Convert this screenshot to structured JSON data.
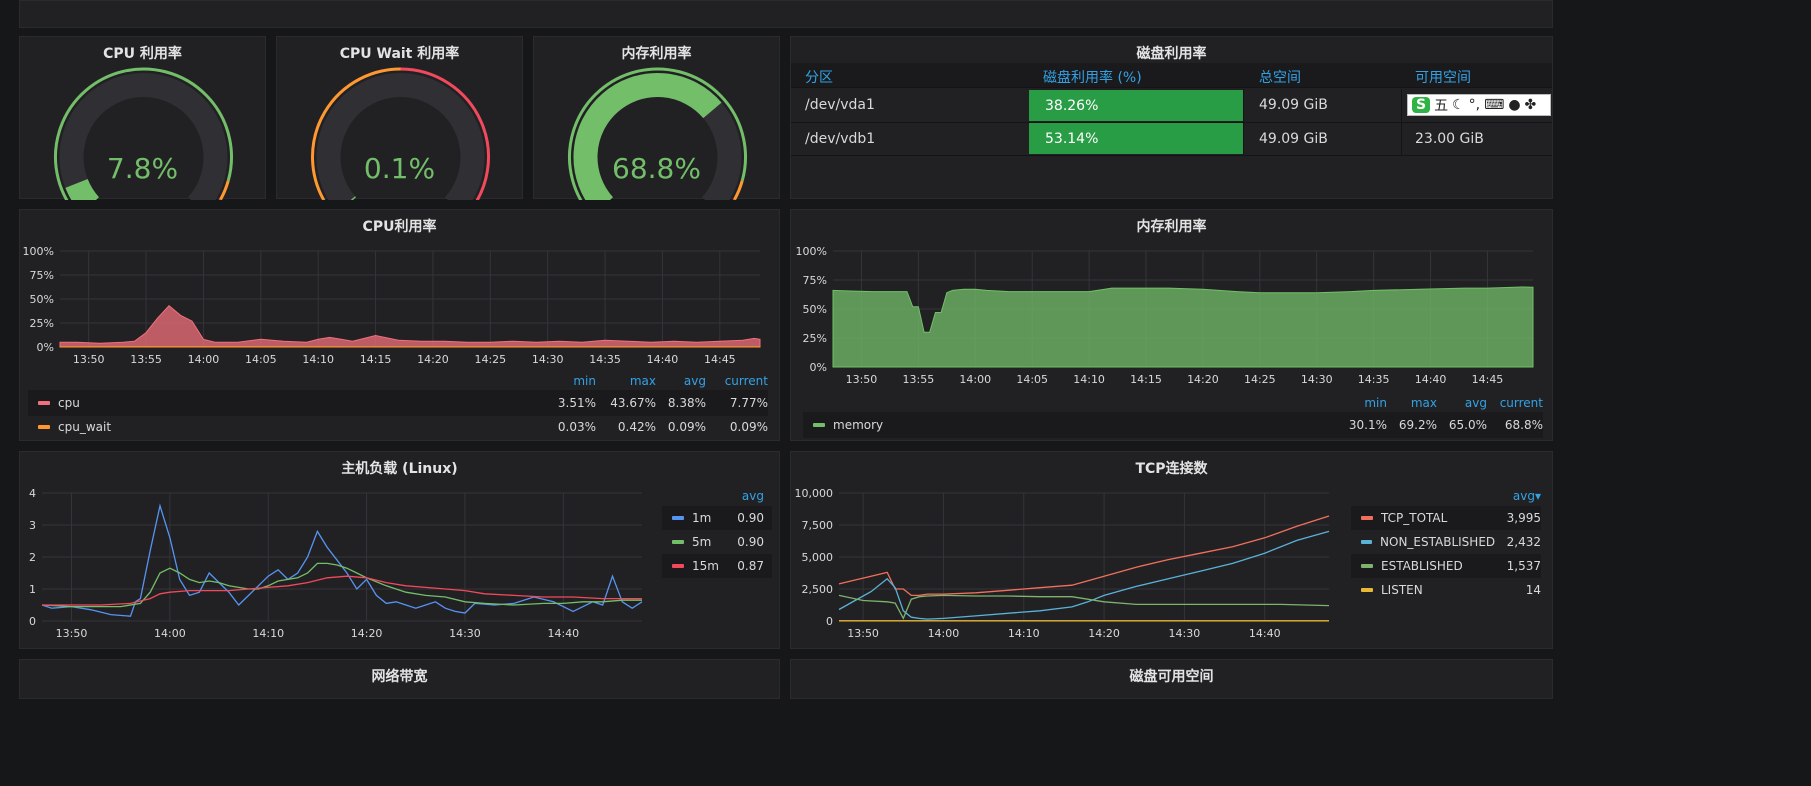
{
  "gauges": [
    {
      "title": "CPU 利用率",
      "value": 7.8,
      "value_text": "7.8%",
      "fraction": 0.078,
      "thresholds": [
        0.9,
        0.95
      ]
    },
    {
      "title": "CPU Wait 利用率",
      "value": 0.1,
      "value_text": "0.1%",
      "fraction": 0.001,
      "thresholds": [
        0.05,
        0.5
      ]
    },
    {
      "title": "内存利用率",
      "value": 68.8,
      "value_text": "68.8%",
      "fraction": 0.688,
      "thresholds": [
        0.9,
        0.95
      ]
    }
  ],
  "disk_table": {
    "title": "磁盘利用率",
    "headers": [
      "分区",
      "磁盘利用率 (%)",
      "总空间",
      "可用空间"
    ],
    "rows": [
      {
        "partition": "/dev/vda1",
        "usage": "38.26%",
        "total": "49.09 GiB",
        "free": ""
      },
      {
        "partition": "/dev/vdb1",
        "usage": "53.14%",
        "total": "49.09 GiB",
        "free": "23.00 GiB"
      }
    ]
  },
  "ime_toolbar": {
    "logo": "S",
    "mode": "五",
    "icons": [
      "moon-icon",
      "punctuation-icon",
      "keyboard-icon",
      "user-icon",
      "grid-icon"
    ]
  },
  "colors": {
    "green": "#73bf69",
    "orange": "#ff9830",
    "red": "#f2495c",
    "blue": "#5794f2",
    "cpu": "#f2707b",
    "bar_green": "#299c46",
    "header_blue": "#33a2e5"
  },
  "cpu_chart": {
    "title": "CPU利用率",
    "legend_headers": [
      "min",
      "max",
      "avg",
      "current"
    ],
    "legend": [
      {
        "name": "cpu",
        "min": "3.51%",
        "max": "43.67%",
        "avg": "8.38%",
        "current": "7.77%"
      },
      {
        "name": "cpu_wait",
        "min": "0.03%",
        "max": "0.42%",
        "avg": "0.09%",
        "current": "0.09%"
      }
    ]
  },
  "mem_chart": {
    "title": "内存利用率",
    "legend_headers": [
      "min",
      "max",
      "avg",
      "current"
    ],
    "legend": [
      {
        "name": "memory",
        "min": "30.1%",
        "max": "69.2%",
        "avg": "65.0%",
        "current": "68.8%"
      }
    ]
  },
  "load_chart": {
    "title": "主机负载 (Linux)",
    "legend_header": "avg",
    "legend": [
      {
        "name": "1m",
        "avg": "0.90"
      },
      {
        "name": "5m",
        "avg": "0.90"
      },
      {
        "name": "15m",
        "avg": "0.87"
      }
    ]
  },
  "tcp_chart": {
    "title": "TCP连接数",
    "legend_header": "avg▾",
    "legend": [
      {
        "name": "TCP_TOTAL",
        "avg": "3,995"
      },
      {
        "name": "NON_ESTABLISHED",
        "avg": "2,432"
      },
      {
        "name": "ESTABLISHED",
        "avg": "1,537"
      },
      {
        "name": "LISTEN",
        "avg": "14"
      }
    ]
  },
  "bottom_titles": [
    "网络带宽",
    "磁盘可用空间"
  ],
  "chart_data": [
    {
      "type": "area",
      "name": "cpu_chart",
      "x_ticks": [
        "13:50",
        "13:55",
        "14:00",
        "14:05",
        "14:10",
        "14:15",
        "14:20",
        "14:25",
        "14:30",
        "14:35",
        "14:40",
        "14:45"
      ],
      "y_ticks": [
        "0%",
        "25%",
        "50%",
        "75%",
        "100%"
      ],
      "ylim": [
        0,
        100
      ],
      "xlim": [
        47.5,
        108.5
      ],
      "series": [
        {
          "name": "cpu",
          "color": "#f2707b",
          "x": [
            47.5,
            49,
            51,
            53,
            54,
            55,
            56,
            57,
            58,
            59,
            60,
            61,
            62,
            63,
            65,
            67,
            69,
            70,
            71,
            72,
            73,
            75,
            77,
            79,
            81,
            83,
            85,
            87,
            89,
            91,
            93,
            95,
            97,
            99,
            101,
            103,
            105,
            107,
            108,
            108.5
          ],
          "y": [
            5,
            5,
            4,
            5,
            6,
            15,
            30,
            43,
            33,
            27,
            8,
            5,
            5,
            5,
            8,
            6,
            5,
            8,
            10,
            8,
            6,
            12,
            7,
            6,
            6,
            5,
            5,
            6,
            5,
            6,
            5,
            7,
            6,
            5,
            6,
            5,
            6,
            7,
            9,
            8
          ]
        },
        {
          "name": "cpu_wait",
          "color": "#ff9830",
          "x": [
            47.5,
            60,
            75,
            90,
            108.5
          ],
          "y": [
            0.1,
            0.3,
            0.1,
            0.1,
            0.1
          ]
        }
      ],
      "grid": true
    },
    {
      "type": "area",
      "name": "mem_chart",
      "x_ticks": [
        "13:50",
        "13:55",
        "14:00",
        "14:05",
        "14:10",
        "14:15",
        "14:20",
        "14:25",
        "14:30",
        "14:35",
        "14:40",
        "14:45"
      ],
      "y_ticks": [
        "0%",
        "25%",
        "50%",
        "75%",
        "100%"
      ],
      "ylim": [
        0,
        100
      ],
      "xlim": [
        47.5,
        109
      ],
      "series": [
        {
          "name": "memory",
          "color": "#73bf69",
          "x": [
            47.5,
            49,
            51,
            53,
            54,
            54.5,
            55,
            55.5,
            56,
            56.5,
            57,
            57.5,
            58,
            59,
            60,
            61,
            63,
            65,
            70,
            72,
            77,
            80,
            83,
            85,
            88,
            90,
            93,
            95,
            99,
            103,
            105,
            108,
            109
          ],
          "y": [
            66,
            65.5,
            65,
            65,
            65,
            52,
            52,
            30,
            30,
            47,
            47,
            64,
            66,
            67,
            67,
            66,
            65,
            65,
            65,
            68,
            68,
            67,
            65,
            64,
            64,
            64,
            65,
            66,
            67,
            68,
            68,
            69,
            68.8
          ]
        }
      ],
      "grid": true
    },
    {
      "type": "line",
      "name": "load_chart",
      "x_ticks": [
        "13:50",
        "14:00",
        "14:10",
        "14:20",
        "14:30",
        "14:40"
      ],
      "y_ticks": [
        "0",
        "1",
        "2",
        "3",
        "4"
      ],
      "ylim": [
        0,
        4
      ],
      "xlim": [
        47,
        108
      ],
      "series": [
        {
          "name": "1m",
          "color": "#5794f2",
          "x": [
            47,
            48,
            50,
            52,
            54,
            56,
            56.5,
            57,
            58,
            59,
            60,
            61,
            62,
            63,
            64,
            65,
            66,
            67,
            68,
            69,
            70,
            71,
            72,
            73,
            74,
            75,
            76,
            77,
            78,
            79,
            80,
            81,
            82,
            83,
            84,
            85,
            86,
            87,
            88,
            89,
            90,
            91,
            93,
            95,
            97,
            99,
            101,
            103,
            104,
            105,
            106,
            107,
            108
          ],
          "y": [
            0.5,
            0.4,
            0.45,
            0.35,
            0.2,
            0.15,
            0.6,
            0.7,
            2.2,
            3.6,
            2.6,
            1.3,
            0.8,
            0.9,
            1.5,
            1.2,
            0.9,
            0.5,
            0.8,
            1.1,
            1.4,
            1.6,
            1.3,
            1.5,
            2.0,
            2.8,
            2.3,
            1.9,
            1.5,
            1.0,
            1.3,
            0.8,
            0.55,
            0.6,
            0.5,
            0.4,
            0.5,
            0.6,
            0.4,
            0.3,
            0.25,
            0.55,
            0.5,
            0.55,
            0.75,
            0.6,
            0.3,
            0.6,
            0.5,
            1.4,
            0.6,
            0.4,
            0.6
          ]
        },
        {
          "name": "5m",
          "color": "#73bf69",
          "x": [
            47,
            50,
            53,
            55,
            57,
            58,
            59,
            60,
            61,
            62,
            63,
            64,
            65,
            66,
            67,
            68,
            69,
            70,
            71,
            72,
            73,
            74,
            75,
            76,
            77,
            78,
            79,
            80,
            82,
            84,
            86,
            88,
            90,
            92,
            95,
            98,
            100,
            102,
            104,
            106,
            108
          ],
          "y": [
            0.5,
            0.45,
            0.45,
            0.45,
            0.55,
            0.9,
            1.5,
            1.65,
            1.5,
            1.3,
            1.2,
            1.25,
            1.2,
            1.1,
            1.05,
            1.0,
            1.0,
            1.1,
            1.25,
            1.3,
            1.35,
            1.5,
            1.8,
            1.8,
            1.75,
            1.65,
            1.5,
            1.35,
            1.1,
            0.9,
            0.8,
            0.75,
            0.6,
            0.55,
            0.5,
            0.55,
            0.55,
            0.6,
            0.6,
            0.65,
            0.65
          ]
        },
        {
          "name": "15m",
          "color": "#f2495c",
          "x": [
            47,
            50,
            53,
            56,
            58,
            59,
            60,
            62,
            64,
            66,
            68,
            70,
            72,
            74,
            76,
            78,
            80,
            82,
            84,
            86,
            88,
            90,
            92,
            95,
            98,
            101,
            104,
            106,
            108
          ],
          "y": [
            0.5,
            0.5,
            0.5,
            0.55,
            0.7,
            0.85,
            0.9,
            0.95,
            0.95,
            0.95,
            1.0,
            1.05,
            1.1,
            1.2,
            1.35,
            1.4,
            1.35,
            1.2,
            1.1,
            1.05,
            1.0,
            0.95,
            0.85,
            0.8,
            0.75,
            0.75,
            0.7,
            0.7,
            0.7
          ]
        }
      ],
      "grid": true
    },
    {
      "type": "line",
      "name": "tcp_chart",
      "x_ticks": [
        "13:50",
        "14:00",
        "14:10",
        "14:20",
        "14:30",
        "14:40"
      ],
      "y_ticks": [
        "0",
        "2,500",
        "5,000",
        "7,500",
        "10,000"
      ],
      "ylim": [
        0,
        10000
      ],
      "xlim": [
        47,
        108
      ],
      "series": [
        {
          "name": "TCP_TOTAL",
          "color": "#f2705b",
          "x": [
            47,
            49,
            51,
            53,
            54,
            55,
            56,
            57,
            58,
            60,
            64,
            68,
            72,
            76,
            80,
            84,
            88,
            92,
            96,
            100,
            104,
            108
          ],
          "y": [
            2900,
            3200,
            3500,
            3800,
            2500,
            2500,
            2000,
            2000,
            2100,
            2100,
            2200,
            2400,
            2600,
            2800,
            3500,
            4200,
            4800,
            5300,
            5800,
            6500,
            7400,
            8200
          ]
        },
        {
          "name": "NON_ESTABLISHED",
          "color": "#5ab2d7",
          "x": [
            47,
            49,
            51,
            53,
            54,
            55,
            56,
            57,
            58,
            60,
            64,
            68,
            72,
            76,
            78,
            80,
            84,
            88,
            92,
            96,
            100,
            104,
            108
          ],
          "y": [
            900,
            1600,
            2300,
            3300,
            2600,
            800,
            300,
            200,
            150,
            200,
            400,
            600,
            800,
            1100,
            1500,
            2000,
            2700,
            3300,
            3900,
            4500,
            5300,
            6300,
            7000
          ]
        },
        {
          "name": "ESTABLISHED",
          "color": "#7eb26d",
          "x": [
            47,
            50,
            53,
            54,
            55,
            56,
            57,
            58,
            60,
            64,
            68,
            72,
            76,
            80,
            84,
            90,
            96,
            102,
            108
          ],
          "y": [
            2000,
            1600,
            1500,
            1400,
            200,
            1700,
            1900,
            1950,
            2000,
            1950,
            1950,
            1900,
            1900,
            1500,
            1300,
            1300,
            1300,
            1300,
            1200
          ]
        },
        {
          "name": "LISTEN",
          "color": "#eab839",
          "x": [
            47,
            108
          ],
          "y": [
            14,
            14
          ]
        }
      ],
      "grid": true
    }
  ]
}
